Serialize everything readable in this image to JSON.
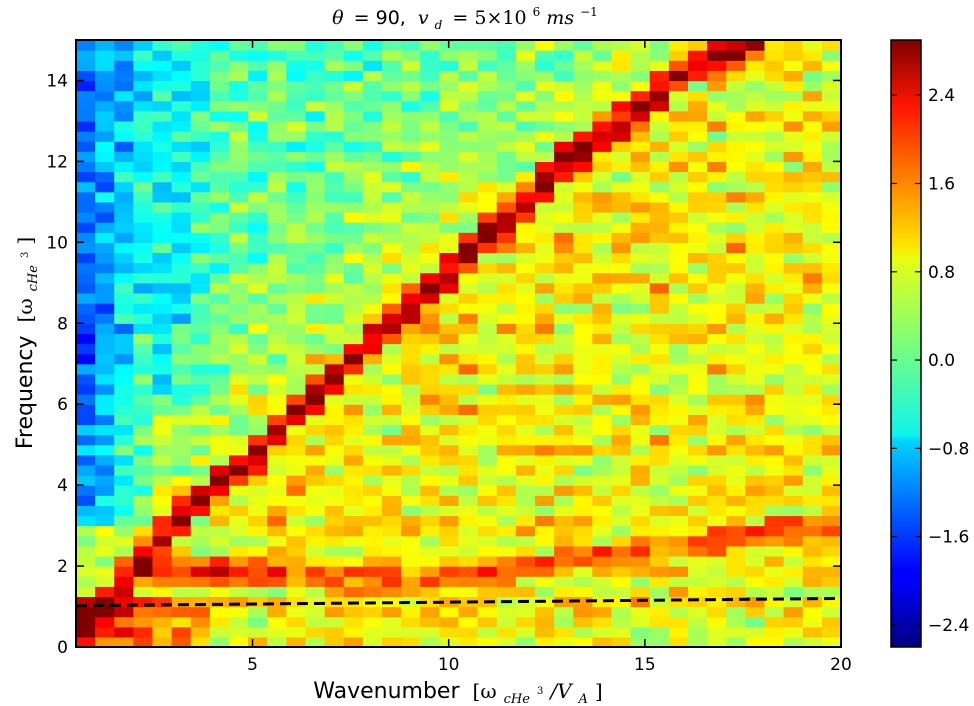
{
  "chart_data": {
    "type": "heatmap",
    "title": "θ = 90, v_d = 5×10⁶ms⁻¹",
    "title_parts": {
      "theta": "θ",
      "eq": "= 90,",
      "vd": "v",
      "vd_sub": "d",
      "eq2": "=  5×10",
      "exp6": "6",
      "ms": "ms",
      "exp_m1": "−1"
    },
    "xlabel_main": "Wavenumber",
    "xlabel_math": "[ω",
    "xlabel_sub": "cHe",
    "xlabel_sup": "3",
    "xlabel_tail": "/V",
    "xlabel_tail_sub": "A",
    "xlabel_close": "]",
    "ylabel_main": "Frequency",
    "ylabel_math": "[ω",
    "ylabel_sub": "cHe",
    "ylabel_sup": "3",
    "ylabel_close": "]",
    "xlim": [
      0.5,
      20
    ],
    "ylim": [
      0,
      15
    ],
    "x_ticks": [
      5,
      10,
      15,
      20
    ],
    "x_tick_labels": [
      "5",
      "10",
      "15",
      "20"
    ],
    "y_ticks": [
      0,
      2,
      4,
      6,
      8,
      10,
      12,
      14
    ],
    "y_tick_labels": [
      "0",
      "2",
      "4",
      "6",
      "8",
      "10",
      "12",
      "14"
    ],
    "colorbar": {
      "colormap": "jet",
      "range": [
        -2.6,
        2.9
      ],
      "ticks": [
        -2.4,
        -1.6,
        -0.8,
        0.0,
        0.8,
        1.6,
        2.4
      ],
      "tick_labels": [
        "−2.4",
        "−1.6",
        "−0.8",
        "0.0",
        "0.8",
        "1.6",
        "2.4"
      ]
    },
    "grid": {
      "x_bins": 40,
      "y_bins": 60,
      "bin_width_x": 0.5,
      "bin_width_y": 0.25
    },
    "features": {
      "main_mode": [
        [
          0.5,
          0.3
        ],
        [
          2,
          2.0
        ],
        [
          3,
          3.0
        ],
        [
          4,
          4.0
        ],
        [
          5,
          4.6
        ],
        [
          6,
          5.8
        ],
        [
          7,
          6.5
        ],
        [
          8,
          7.6
        ],
        [
          9,
          8.4
        ],
        [
          10,
          9.3
        ],
        [
          11,
          10.2
        ],
        [
          12,
          11.0
        ],
        [
          13,
          12.0
        ],
        [
          14,
          12.7
        ],
        [
          15,
          13.4
        ],
        [
          16,
          14.2
        ],
        [
          17,
          14.6
        ],
        [
          18,
          15.0
        ]
      ],
      "lower_mode": [
        [
          2,
          1.9
        ],
        [
          4,
          1.9
        ],
        [
          6,
          1.9
        ],
        [
          8,
          1.6
        ],
        [
          9,
          1.6
        ],
        [
          10,
          1.7
        ],
        [
          12,
          2.0
        ],
        [
          14,
          2.3
        ],
        [
          16,
          2.5
        ],
        [
          18,
          2.8
        ],
        [
          19,
          2.9
        ]
      ],
      "harmonic_bands_y": [
        1,
        2,
        3,
        4,
        5,
        6,
        7,
        8,
        9,
        10,
        11,
        12,
        13
      ]
    },
    "dashed_line": {
      "color": "#000000",
      "style": "dashed",
      "points": [
        [
          0.5,
          1.02
        ],
        [
          20,
          1.2
        ]
      ]
    }
  }
}
